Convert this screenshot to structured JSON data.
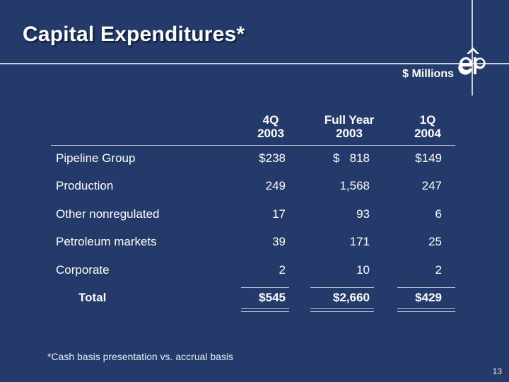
{
  "slide": {
    "title": "Capital Expenditures*",
    "units": "$ Millions",
    "page_number": "13",
    "footnote": "*Cash basis presentation vs. accrual basis"
  },
  "table": {
    "columns": [
      {
        "line1": "4Q",
        "line2": "2003"
      },
      {
        "line1": "Full Year",
        "line2": "2003"
      },
      {
        "line1": "1Q",
        "line2": "2004"
      }
    ],
    "rows": [
      {
        "label": "Pipeline Group",
        "values": [
          "$238",
          "$   818",
          "$149"
        ]
      },
      {
        "label": "Production",
        "values": [
          "249",
          "1,568",
          "247"
        ]
      },
      {
        "label": "Other nonregulated",
        "values": [
          "17",
          "93",
          "6"
        ]
      },
      {
        "label": "Petroleum markets",
        "values": [
          "39",
          "171",
          "25"
        ]
      },
      {
        "label": "Corporate",
        "values": [
          "2",
          "10",
          "2"
        ]
      }
    ],
    "total": {
      "label": "Total",
      "values": [
        "$545",
        "$2,660",
        "$429"
      ]
    }
  },
  "colors": {
    "background": "#233a6b",
    "text": "#ffffff",
    "rule": "#c9d0de"
  },
  "icons": {
    "logo": "ep-logo-icon"
  }
}
